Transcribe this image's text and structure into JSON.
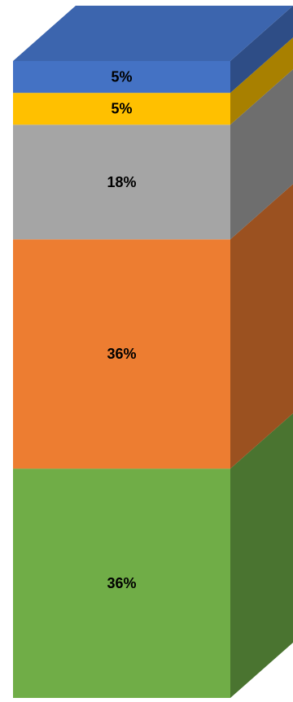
{
  "chart_data": {
    "type": "bar",
    "stacked": true,
    "style": "3d-stacked-column-100-percent",
    "categories": [
      ""
    ],
    "ylim": [
      0,
      100
    ],
    "grid": false,
    "legend": "none",
    "series": [
      {
        "values": [
          36
        ],
        "label": "36%",
        "color": "#70AD47",
        "side_color": "#4A7430"
      },
      {
        "values": [
          36
        ],
        "label": "36%",
        "color": "#ED7D31",
        "side_color": "#9B5120"
      },
      {
        "values": [
          18
        ],
        "label": "18%",
        "color": "#A5A5A5",
        "side_color": "#6E6E6E"
      },
      {
        "values": [
          5
        ],
        "label": "5%",
        "color": "#FFC000",
        "side_color": "#A88000"
      },
      {
        "values": [
          5
        ],
        "label": "5%",
        "color": "#4472C4",
        "side_color": "#2E4D86"
      }
    ]
  }
}
